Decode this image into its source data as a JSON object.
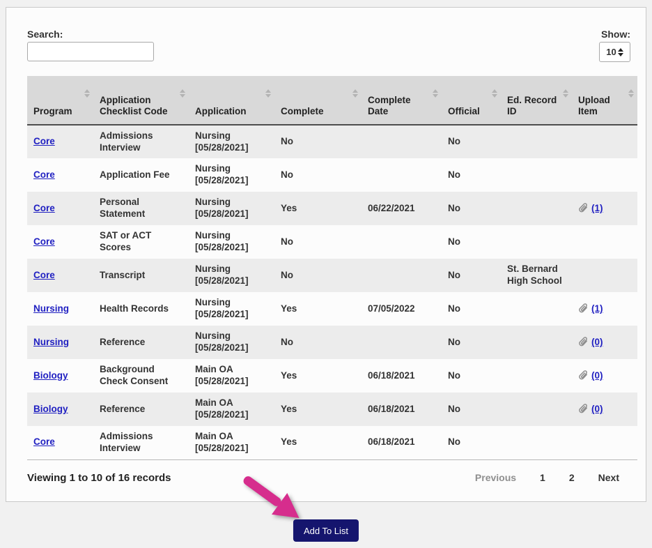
{
  "toolbar": {
    "search_label": "Search:",
    "search_value": "",
    "show_label": "Show:",
    "show_value": "10"
  },
  "table": {
    "columns": [
      {
        "label": "Program"
      },
      {
        "label": "Application Checklist Code"
      },
      {
        "label": "Application"
      },
      {
        "label": "Complete"
      },
      {
        "label": "Complete Date"
      },
      {
        "label": "Official"
      },
      {
        "label": "Ed. Record ID"
      },
      {
        "label": "Upload Item"
      }
    ],
    "rows": [
      {
        "program": "Core",
        "code": "Admissions Interview",
        "application": "Nursing [05/28/2021]",
        "complete": "No",
        "complete_date": "",
        "official": "No",
        "ed_record_id": "",
        "upload": null
      },
      {
        "program": "Core",
        "code": "Application Fee",
        "application": "Nursing [05/28/2021]",
        "complete": "No",
        "complete_date": "",
        "official": "No",
        "ed_record_id": "",
        "upload": null
      },
      {
        "program": "Core",
        "code": "Personal Statement",
        "application": "Nursing [05/28/2021]",
        "complete": "Yes",
        "complete_date": "06/22/2021",
        "official": "No",
        "ed_record_id": "",
        "upload": "(1)"
      },
      {
        "program": "Core",
        "code": "SAT or ACT Scores",
        "application": "Nursing [05/28/2021]",
        "complete": "No",
        "complete_date": "",
        "official": "No",
        "ed_record_id": "",
        "upload": null
      },
      {
        "program": "Core",
        "code": "Transcript",
        "application": "Nursing [05/28/2021]",
        "complete": "No",
        "complete_date": "",
        "official": "No",
        "ed_record_id": "St. Bernard High School",
        "upload": null
      },
      {
        "program": "Nursing",
        "code": "Health Records",
        "application": "Nursing [05/28/2021]",
        "complete": "Yes",
        "complete_date": "07/05/2022",
        "official": "No",
        "ed_record_id": "",
        "upload": "(1)"
      },
      {
        "program": "Nursing",
        "code": "Reference",
        "application": "Nursing [05/28/2021]",
        "complete": "No",
        "complete_date": "",
        "official": "No",
        "ed_record_id": "",
        "upload": "(0)"
      },
      {
        "program": "Biology",
        "code": "Background Check Consent",
        "application": "Main OA [05/28/2021]",
        "complete": "Yes",
        "complete_date": "06/18/2021",
        "official": "No",
        "ed_record_id": "",
        "upload": "(0)"
      },
      {
        "program": "Biology",
        "code": "Reference",
        "application": "Main OA [05/28/2021]",
        "complete": "Yes",
        "complete_date": "06/18/2021",
        "official": "No",
        "ed_record_id": "",
        "upload": "(0)"
      },
      {
        "program": "Core",
        "code": "Admissions Interview",
        "application": "Main OA [05/28/2021]",
        "complete": "Yes",
        "complete_date": "06/18/2021",
        "official": "No",
        "ed_record_id": "",
        "upload": null
      }
    ]
  },
  "footer": {
    "records_summary": "Viewing 1 to 10 of 16 records",
    "pagination": {
      "previous": "Previous",
      "pages": [
        "1",
        "2"
      ],
      "current_page": "1",
      "next": "Next"
    }
  },
  "actions": {
    "add_to_list_label": "Add To List"
  },
  "icons": {
    "sort": "up-down-triangles",
    "select_spinner": "up-down-triangles",
    "upload": "paperclip-icon",
    "annotation": "pink-arrow-pointing-to-add-button"
  },
  "colors": {
    "page_background": "#f1f1f1",
    "panel_background": "#fcfcfc",
    "header_background": "#d9d9d9",
    "stripe_background": "#ececec",
    "link_blue": "#1f1fc1",
    "button_navy": "#15156e",
    "arrow_pink": "#d62d8d",
    "text": "#333333"
  }
}
